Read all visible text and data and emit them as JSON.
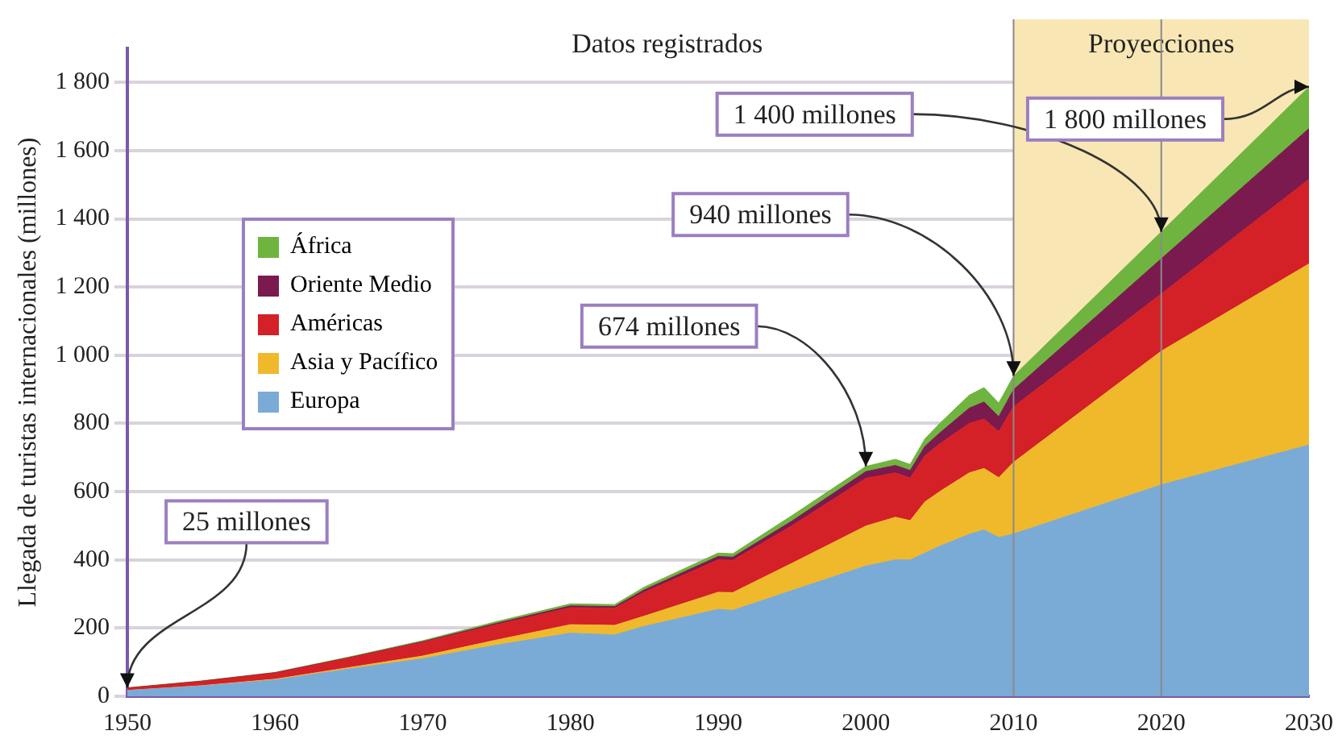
{
  "chart_data": {
    "type": "area",
    "stacked": true,
    "ylabel": "Llegada de turistas internacionales (millones)",
    "x": [
      1950,
      1955,
      1960,
      1965,
      1970,
      1975,
      1980,
      1983,
      1985,
      1990,
      1991,
      1995,
      2000,
      2002,
      2003,
      2004,
      2005,
      2007,
      2008,
      2009,
      2010,
      2020,
      2030
    ],
    "series": [
      {
        "name": "Europa",
        "color": "#7aaad6",
        "values": [
          17,
          30,
          48,
          80,
          110,
          150,
          185,
          180,
          205,
          255,
          252,
          310,
          382,
          400,
          400,
          420,
          440,
          475,
          488,
          466,
          476,
          620,
          737
        ]
      },
      {
        "name": "Asia y Pacífico",
        "color": "#f0b92c",
        "values": [
          0,
          1,
          2,
          4,
          8,
          15,
          25,
          28,
          30,
          50,
          52,
          80,
          117,
          125,
          115,
          150,
          160,
          180,
          180,
          175,
          210,
          392,
          531
        ]
      },
      {
        "name": "Américas",
        "color": "#d42027",
        "values": [
          7,
          12,
          18,
          28,
          40,
          45,
          50,
          50,
          70,
          95,
          95,
          110,
          140,
          130,
          125,
          135,
          140,
          145,
          145,
          135,
          163,
          168,
          248
        ]
      },
      {
        "name": "Oriente Medio",
        "color": "#7a1a4f",
        "values": [
          0,
          1,
          1,
          1,
          2,
          4,
          5,
          5,
          7,
          10,
          9,
          14,
          20,
          22,
          22,
          28,
          32,
          45,
          50,
          44,
          50,
          103,
          149
        ]
      },
      {
        "name": "África",
        "color": "#6fb43f",
        "values": [
          1,
          1,
          1,
          2,
          3,
          5,
          6,
          6,
          8,
          10,
          10,
          16,
          15,
          18,
          18,
          22,
          28,
          38,
          42,
          40,
          40,
          79,
          122
        ]
      }
    ],
    "xlim": [
      1950,
      2030
    ],
    "xticks": [
      1950,
      1960,
      1970,
      1980,
      1990,
      2000,
      2010,
      2020,
      2030
    ],
    "ylim": [
      0,
      1900
    ],
    "yticks": [
      0,
      200,
      400,
      600,
      800,
      {
        "value": 1000,
        "label": "1 000"
      },
      {
        "value": 1200,
        "label": "1 200"
      },
      {
        "value": 1400,
        "label": "1 400"
      },
      {
        "value": 1600,
        "label": "1 600"
      },
      {
        "value": 1800,
        "label": "1 800"
      }
    ],
    "grid": "y",
    "legend": "left",
    "bands": [
      {
        "axis": "x",
        "from": 2010,
        "to": 2030,
        "label": "Proyecciones",
        "color": "#f8e7b4"
      }
    ],
    "ref_lines": [
      {
        "axis": "x",
        "value": 2010,
        "color": "#8a8a8a"
      },
      {
        "axis": "x",
        "value": 2020,
        "color": "#8a8a8a"
      }
    ],
    "annotations": [
      "Datos registrados",
      {
        "text": "25 millones",
        "x": 1950,
        "y": 25
      },
      {
        "text": "674 millones",
        "x": 2000,
        "y": 674
      },
      {
        "text": "940 millones",
        "x": 2010,
        "y": 940
      },
      {
        "text": "1 400 millones",
        "x": 2020,
        "y": 1362
      },
      {
        "text": "1 800 millones",
        "x": 2030,
        "y": 1787
      }
    ]
  }
}
